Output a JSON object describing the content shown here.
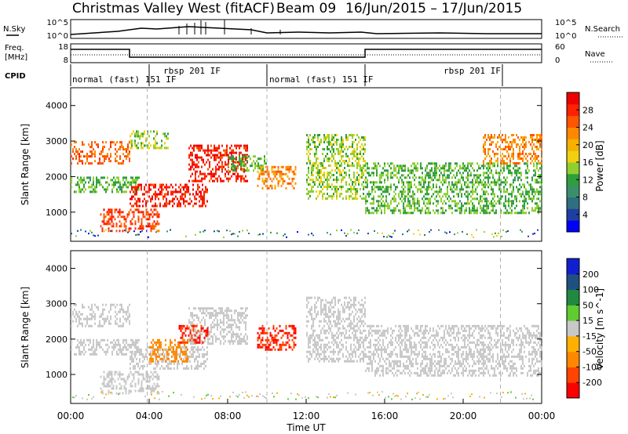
{
  "header": {
    "title": "Christmas Valley West (fitACF)",
    "beam": "Beam 09",
    "date_range": "16/Jun/2015 – 17/Jun/2015"
  },
  "ts_panels": {
    "nsky_label": "N.Sky",
    "nsearch_label": "N.Search",
    "ticks_left_top": [
      "10^5",
      "10^0"
    ],
    "ticks_right_top": [
      "10^5",
      "10^0"
    ],
    "freq_label_line1": "Freq.",
    "freq_label_line2": "[MHz]",
    "freq_ticks": [
      "18",
      "8"
    ],
    "nave_label": "Nave",
    "nave_ticks": [
      "60",
      "0"
    ],
    "cpid_label": "CPID",
    "cpid_modes": [
      {
        "label": "normal (fast) 151 IF",
        "start_hour": 0.0
      },
      {
        "label": "rbsp 201 IF",
        "start_hour": 3.0
      },
      {
        "label": "normal (fast) 151 IF",
        "start_hour": 10.0
      },
      {
        "label": "rbsp 201 IF",
        "start_hour": 15.0
      }
    ]
  },
  "colorbars": {
    "power": {
      "label": "Power [dB]",
      "ticks": [
        "28",
        "24",
        "20",
        "16",
        "12",
        "8",
        "4"
      ],
      "colors": [
        "#0000ff",
        "#1f3fa0",
        "#2f6f80",
        "#3a8f6a",
        "#2e9f3a",
        "#8fcf2f",
        "#f0d010",
        "#f5b000",
        "#ff8800",
        "#ff5500",
        "#ff2200",
        "#ee0000"
      ]
    },
    "velocity": {
      "label": "Velocity [m s^-1]",
      "ticks": [
        "200",
        "100",
        "50",
        "15",
        "-15",
        "-50",
        "-100",
        "-200"
      ],
      "colors": [
        "#ff0000",
        "#ff4400",
        "#ff8800",
        "#ffb000",
        "#c8c8c8",
        "#60cc30",
        "#208a40",
        "#205080",
        "#1020d0"
      ]
    }
  },
  "chart_data": [
    {
      "type": "heatmap",
      "name_hint": "power panel",
      "xlabel": "",
      "ylabel": "Slant Range [km]",
      "x_range_hours": [
        0,
        24
      ],
      "ylim": [
        180,
        4500
      ],
      "yticks": [
        "1000",
        "2000",
        "3000",
        "4000"
      ],
      "regions": [
        {
          "t": [
            0.0,
            3.0
          ],
          "r": [
            2400,
            3000
          ],
          "power": 24
        },
        {
          "t": [
            0.0,
            3.5
          ],
          "r": [
            1600,
            2000
          ],
          "power": 12
        },
        {
          "t": [
            1.5,
            4.5
          ],
          "r": [
            500,
            1100
          ],
          "power": 26
        },
        {
          "t": [
            3.0,
            5.0
          ],
          "r": [
            2800,
            3300
          ],
          "power": 14
        },
        {
          "t": [
            3.0,
            7.0
          ],
          "r": [
            1200,
            1800
          ],
          "power": 28
        },
        {
          "t": [
            6.0,
            9.0
          ],
          "r": [
            1900,
            2900
          ],
          "power": 28
        },
        {
          "t": [
            8.0,
            10.0
          ],
          "r": [
            2200,
            2600
          ],
          "power": 12
        },
        {
          "t": [
            9.5,
            11.5
          ],
          "r": [
            1700,
            2300
          ],
          "power": 22
        },
        {
          "t": [
            12.0,
            15.0
          ],
          "r": [
            1400,
            3200
          ],
          "power": 14
        },
        {
          "t": [
            15.0,
            24.0
          ],
          "r": [
            1000,
            2400
          ],
          "power": 12
        },
        {
          "t": [
            21.0,
            24.0
          ],
          "r": [
            2400,
            3200
          ],
          "power": 22
        }
      ]
    },
    {
      "type": "heatmap",
      "name_hint": "velocity panel",
      "xlabel": "Time UT",
      "ylabel": "Slant Range [km]",
      "x_range_hours": [
        0,
        24
      ],
      "xticks": [
        "00:00",
        "04:00",
        "08:00",
        "12:00",
        "16:00",
        "20:00",
        "00:00"
      ],
      "ylim": [
        180,
        4500
      ],
      "yticks": [
        "1000",
        "2000",
        "3000",
        "4000"
      ],
      "regions": [
        {
          "t": [
            0.0,
            3.0
          ],
          "r": [
            2400,
            3000
          ],
          "velocity": 0
        },
        {
          "t": [
            0.0,
            3.5
          ],
          "r": [
            1600,
            2000
          ],
          "velocity": 0
        },
        {
          "t": [
            1.5,
            4.5
          ],
          "r": [
            500,
            1100
          ],
          "velocity": 0
        },
        {
          "t": [
            3.0,
            7.0
          ],
          "r": [
            1200,
            1800
          ],
          "velocity": 0
        },
        {
          "t": [
            4.0,
            6.0
          ],
          "r": [
            1400,
            2000
          ],
          "velocity": -60
        },
        {
          "t": [
            6.0,
            9.0
          ],
          "r": [
            1900,
            2900
          ],
          "velocity": 0
        },
        {
          "t": [
            5.5,
            7.0
          ],
          "r": [
            1900,
            2400
          ],
          "velocity": -200
        },
        {
          "t": [
            9.5,
            11.5
          ],
          "r": [
            1700,
            2400
          ],
          "velocity": -200
        },
        {
          "t": [
            12.0,
            15.0
          ],
          "r": [
            1400,
            3200
          ],
          "velocity": 0
        },
        {
          "t": [
            15.0,
            24.0
          ],
          "r": [
            1000,
            2400
          ],
          "velocity": 0
        }
      ]
    }
  ]
}
